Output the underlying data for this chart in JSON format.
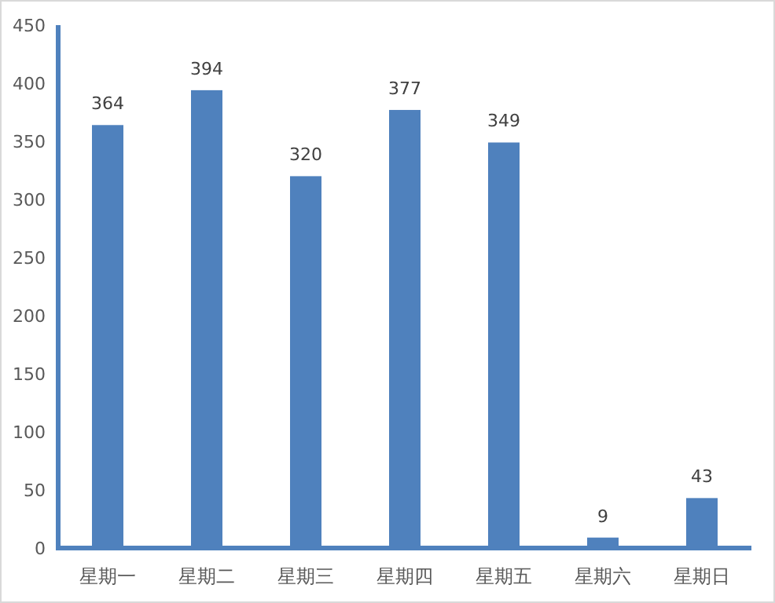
{
  "chart_data": {
    "type": "bar",
    "categories": [
      "星期一",
      "星期二",
      "星期三",
      "星期四",
      "星期五",
      "星期六",
      "星期日"
    ],
    "values": [
      364,
      394,
      320,
      377,
      349,
      9,
      43
    ],
    "color": "#4f81bd",
    "data_labels": true,
    "ylim": [
      0,
      450
    ],
    "yticks": [
      0,
      50,
      100,
      150,
      200,
      250,
      300,
      350,
      400,
      450
    ],
    "grid": false
  }
}
